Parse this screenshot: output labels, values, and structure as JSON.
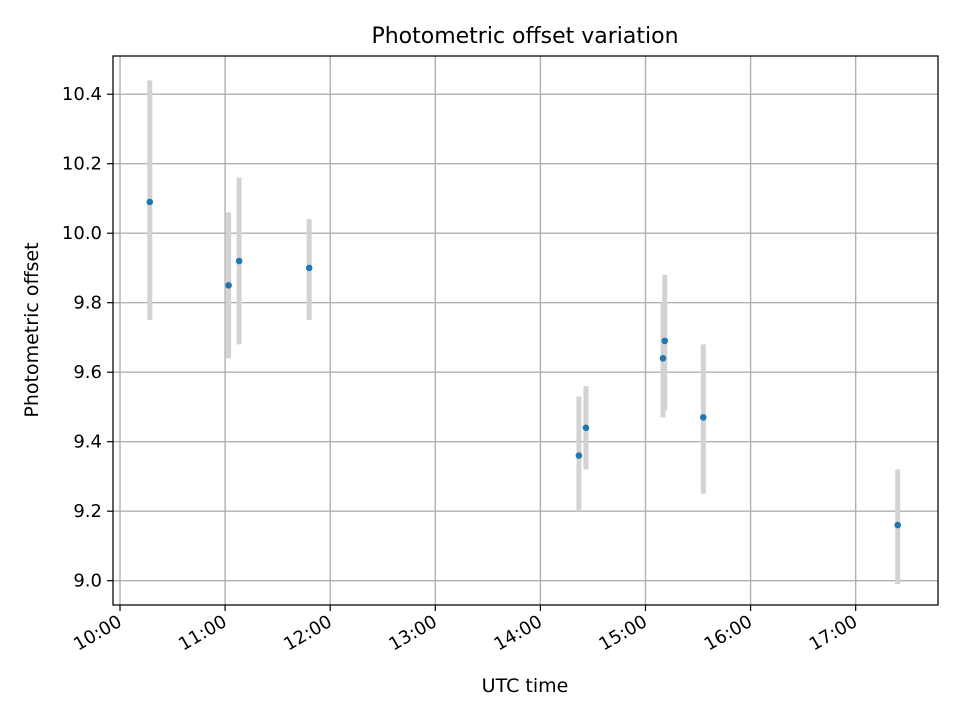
{
  "chart_data": {
    "type": "scatter",
    "title": "Photometric offset variation",
    "xlabel": "UTC time",
    "ylabel": "Photometric offset",
    "x_tick_labels": [
      "10:00",
      "11:00",
      "12:00",
      "13:00",
      "14:00",
      "15:00",
      "16:00",
      "17:00"
    ],
    "y_tick_labels": [
      "9.0",
      "9.2",
      "9.4",
      "9.6",
      "9.8",
      "10.0",
      "10.2",
      "10.4"
    ],
    "xlim": [
      "09:56",
      "17:47"
    ],
    "ylim": [
      8.93,
      10.51
    ],
    "grid": true,
    "points": [
      {
        "x": "10:17",
        "y": 10.09,
        "ylow": 9.75,
        "yhigh": 10.44
      },
      {
        "x": "11:02",
        "y": 9.85,
        "ylow": 9.64,
        "yhigh": 10.06
      },
      {
        "x": "11:08",
        "y": 9.92,
        "ylow": 9.68,
        "yhigh": 10.16
      },
      {
        "x": "11:48",
        "y": 9.9,
        "ylow": 9.75,
        "yhigh": 10.04
      },
      {
        "x": "14:22",
        "y": 9.36,
        "ylow": 9.2,
        "yhigh": 9.53
      },
      {
        "x": "14:26",
        "y": 9.44,
        "ylow": 9.32,
        "yhigh": 9.56
      },
      {
        "x": "15:10",
        "y": 9.64,
        "ylow": 9.47,
        "yhigh": 9.8
      },
      {
        "x": "15:11",
        "y": 9.69,
        "ylow": 9.49,
        "yhigh": 9.88
      },
      {
        "x": "15:33",
        "y": 9.47,
        "ylow": 9.25,
        "yhigh": 9.68
      },
      {
        "x": "17:24",
        "y": 9.16,
        "ylow": 8.99,
        "yhigh": 9.32
      }
    ],
    "colors": {
      "points": "#1f77b4",
      "errorbars": "#d3d3d3",
      "grid": "#b0b0b0"
    }
  }
}
